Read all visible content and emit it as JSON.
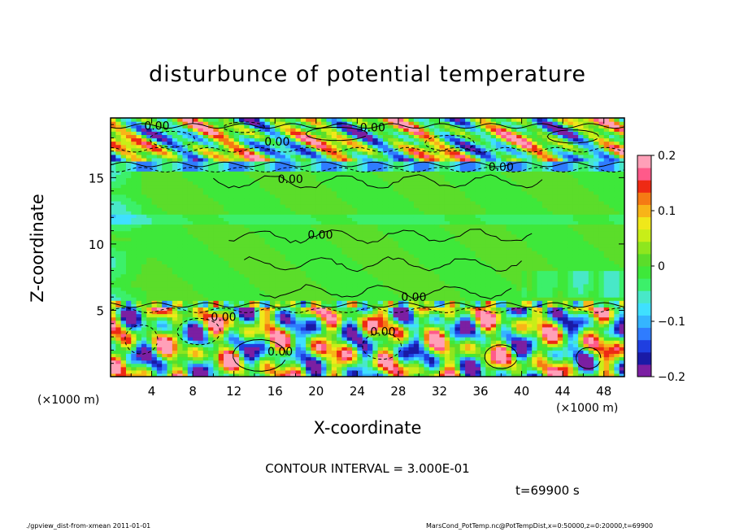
{
  "chart_data": {
    "type": "heatmap",
    "title": "disturbunce of potential temperature",
    "xlabel": "X-coordinate",
    "ylabel": "Z-coordinate",
    "x_unit_left": "(×1000 m)",
    "x_unit_right": "(×1000 m)",
    "xlim": [
      0,
      50
    ],
    "ylim": [
      0,
      19.5
    ],
    "x_ticks": [
      "4",
      "8",
      "12",
      "16",
      "20",
      "24",
      "28",
      "32",
      "36",
      "40",
      "44",
      "48"
    ],
    "x_tick_values": [
      4,
      8,
      12,
      16,
      20,
      24,
      28,
      32,
      36,
      40,
      44,
      48
    ],
    "y_ticks": [
      "5",
      "10",
      "15"
    ],
    "y_tick_values": [
      5,
      10,
      15
    ],
    "colorbar": {
      "min": -0.2,
      "max": 0.2,
      "labels": [
        "0.2",
        "0.1",
        "0",
        "−0.1",
        "−0.2"
      ],
      "label_values": [
        0.2,
        0.1,
        0,
        -0.1,
        -0.2
      ],
      "colors": [
        "#7b1fa2",
        "#1a1aa6",
        "#1f3fe0",
        "#2f7cff",
        "#35b5ff",
        "#3fe0ff",
        "#48e8c8",
        "#3cf06a",
        "#3ee83a",
        "#5bdd2a",
        "#8ee61e",
        "#c8ee18",
        "#f0e81a",
        "#f8b418",
        "#f57a14",
        "#ee2a14",
        "#ff5a8a",
        "#ffa0b8"
      ]
    },
    "contour_labels": [
      {
        "text": "0.00",
        "x": 4.5,
        "z": 18.6
      },
      {
        "text": "0.00",
        "x": 16.2,
        "z": 17.4
      },
      {
        "text": "0.00",
        "x": 25.5,
        "z": 18.5
      },
      {
        "text": "0.00",
        "x": 38,
        "z": 15.5
      },
      {
        "text": "0.00",
        "x": 17.5,
        "z": 14.6
      },
      {
        "text": "0.00",
        "x": 20.4,
        "z": 10.4
      },
      {
        "text": "0.00",
        "x": 29.5,
        "z": 5.7
      },
      {
        "text": "0.00",
        "x": 11,
        "z": 4.2
      },
      {
        "text": "0.00",
        "x": 26.5,
        "z": 3.1
      },
      {
        "text": "0.00",
        "x": 16.5,
        "z": 1.6
      }
    ],
    "grid": false,
    "legend": "colorbar-right"
  },
  "annotations": {
    "contour_interval": "CONTOUR INTERVAL = 3.000E-01",
    "time": "t=69900 s",
    "footer_left": "./gpview_dist-from-xmean   2011-01-01",
    "footer_right": "MarsCond_PotTemp.nc@PotTempDist,x=0:50000,z=0:20000,t=69900"
  }
}
